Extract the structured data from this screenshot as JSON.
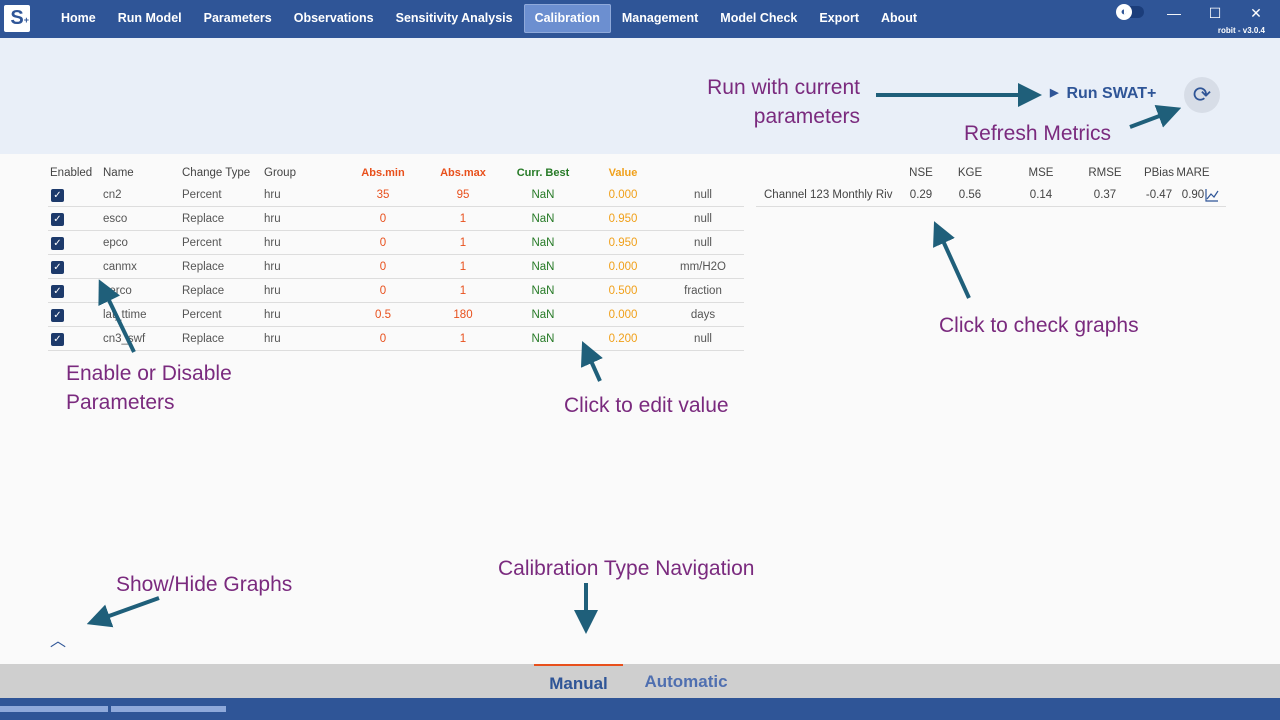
{
  "app": {
    "logo_text": "S",
    "logo_sub": "+",
    "version": "robit  -  v3.0.4"
  },
  "nav": [
    {
      "label": "Home"
    },
    {
      "label": "Run Model"
    },
    {
      "label": "Parameters"
    },
    {
      "label": "Observations"
    },
    {
      "label": "Sensitivity Analysis"
    },
    {
      "label": "Calibration",
      "active": true
    },
    {
      "label": "Management"
    },
    {
      "label": "Model Check"
    },
    {
      "label": "Export"
    },
    {
      "label": "About"
    }
  ],
  "window": {
    "minimize": "—",
    "maximize": "☐",
    "close": "✕",
    "theme_icon": "◐"
  },
  "actions": {
    "run_label": "Run SWAT+",
    "run_icon": "play-icon",
    "refresh_icon": "refresh-icon"
  },
  "params": {
    "headers": {
      "enabled": "Enabled",
      "name": "Name",
      "change_type": "Change Type",
      "group": "Group",
      "abs_min": "Abs.min",
      "abs_max": "Abs.max",
      "curr_best": "Curr. Best",
      "value": "Value"
    },
    "rows": [
      {
        "enabled": true,
        "name": "cn2",
        "change_type": "Percent",
        "group": "hru",
        "abs_min": "35",
        "abs_max": "95",
        "curr_best": "NaN",
        "value": "0.000",
        "unit": "null"
      },
      {
        "enabled": true,
        "name": "esco",
        "change_type": "Replace",
        "group": "hru",
        "abs_min": "0",
        "abs_max": "1",
        "curr_best": "NaN",
        "value": "0.950",
        "unit": "null"
      },
      {
        "enabled": true,
        "name": "epco",
        "change_type": "Percent",
        "group": "hru",
        "abs_min": "0",
        "abs_max": "1",
        "curr_best": "NaN",
        "value": "0.950",
        "unit": "null"
      },
      {
        "enabled": true,
        "name": "canmx",
        "change_type": "Replace",
        "group": "hru",
        "abs_min": "0",
        "abs_max": "1",
        "curr_best": "NaN",
        "value": "0.000",
        "unit": "mm/H2O"
      },
      {
        "enabled": true,
        "name": "perco",
        "change_type": "Replace",
        "group": "hru",
        "abs_min": "0",
        "abs_max": "1",
        "curr_best": "NaN",
        "value": "0.500",
        "unit": "fraction"
      },
      {
        "enabled": true,
        "name": "lat_ttime",
        "change_type": "Percent",
        "group": "hru",
        "abs_min": "0.5",
        "abs_max": "180",
        "curr_best": "NaN",
        "value": "0.000",
        "unit": "days"
      },
      {
        "enabled": true,
        "name": "cn3_swf",
        "change_type": "Replace",
        "group": "hru",
        "abs_min": "0",
        "abs_max": "1",
        "curr_best": "NaN",
        "value": "0.200",
        "unit": "null"
      }
    ]
  },
  "metrics": {
    "headers": {
      "nse": "NSE",
      "kge": "KGE",
      "mse": "MSE",
      "rmse": "RMSE",
      "pbias": "PBias",
      "mare": "MARE"
    },
    "rows": [
      {
        "name": "Channel 123 Monthly Riv",
        "nse": "0.29",
        "kge": "0.56",
        "mse": "0.14",
        "rmse": "0.37",
        "pbias": "-0.47",
        "mare": "0.90"
      }
    ]
  },
  "annotations": {
    "run": "Run with current\nparameters",
    "refresh": "Refresh Metrics",
    "graphs": "Click to check graphs",
    "enable": "Enable or Disable\nParameters",
    "edit": "Click to edit value",
    "show_hide": "Show/Hide Graphs",
    "nav": "Calibration Type Navigation"
  },
  "bottom_tabs": [
    {
      "label": "Manual",
      "active": true
    },
    {
      "label": "Automatic"
    }
  ],
  "colors": {
    "primary": "#2f5597",
    "annotation": "#7a2a7e",
    "arrow": "#1f5f7a",
    "min_max": "#e8501c",
    "best": "#267a26",
    "value": "#f0a01a"
  }
}
